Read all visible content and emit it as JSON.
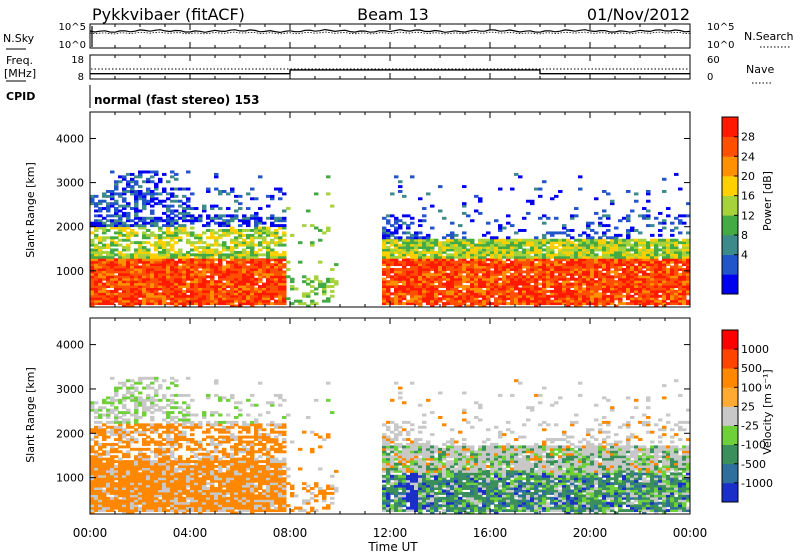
{
  "header": {
    "radar": "Pykkvibaer (fitACF)",
    "beam": "Beam 13",
    "date": "01/Nov/2012"
  },
  "noise_panel": {
    "left_label": "N.Sky",
    "right_label": "N.Search",
    "ticks": [
      "10^5",
      "10^0"
    ]
  },
  "freq_panel": {
    "left_label_1": "Freq.",
    "left_label_2": "[MHz]",
    "left_ticks": [
      "18",
      "8"
    ],
    "right_label": "Nave",
    "right_ticks": [
      "60",
      "0"
    ],
    "freq_steps": [
      [
        0,
        10.2
      ],
      [
        8.0,
        10.2
      ],
      [
        8.0,
        11.8
      ],
      [
        18.0,
        11.8
      ],
      [
        18.0,
        10.2
      ],
      [
        24,
        10.2
      ]
    ]
  },
  "cpid": {
    "label": "CPID",
    "text": "normal (fast stereo) 153"
  },
  "chart_data": [
    {
      "type": "heatmap",
      "name": "power",
      "xlabel": "Time UT",
      "ylabel": "Slant Range [km]",
      "x_ticks": [
        "00:00",
        "04:00",
        "08:00",
        "12:00",
        "16:00",
        "20:00",
        "00:00"
      ],
      "xlim_hours": [
        0,
        24
      ],
      "ylim": [
        180,
        4600
      ],
      "y_ticks": [
        1000,
        2000,
        3000,
        4000
      ],
      "y_tick_labels": [
        "1000",
        "2000",
        "3000",
        "4000"
      ],
      "colorbar": {
        "label": "Power [dB]",
        "ticks": [
          "28",
          "24",
          "20",
          "16",
          "12",
          "8",
          "4"
        ],
        "colors": [
          "#0000ee",
          "#2255c8",
          "#3d8a8a",
          "#44aa44",
          "#a6d23b",
          "#ffd000",
          "#ff9000",
          "#ff5000",
          "#ff1a00"
        ]
      }
    },
    {
      "type": "heatmap",
      "name": "velocity",
      "xlabel": "Time UT",
      "ylabel": "Slant Range [km]",
      "x_ticks": [
        "00:00",
        "04:00",
        "08:00",
        "12:00",
        "16:00",
        "20:00",
        "00:00"
      ],
      "xlim_hours": [
        0,
        24
      ],
      "ylim": [
        180,
        4600
      ],
      "y_ticks": [
        1000,
        2000,
        3000,
        4000
      ],
      "y_tick_labels": [
        "1000",
        "2000",
        "3000",
        "4000"
      ],
      "colorbar": {
        "label": "Velocity [m s⁻¹]",
        "ticks": [
          "1000",
          "500",
          "100",
          "25",
          "-25",
          "-100",
          "-500",
          "-1000"
        ],
        "colors": [
          "#1a2fc8",
          "#2e6f9e",
          "#3a8f5a",
          "#6fd13a",
          "#c8c8c8",
          "#ffaa33",
          "#ff8800",
          "#ff4400",
          "#ff0000"
        ]
      }
    }
  ]
}
